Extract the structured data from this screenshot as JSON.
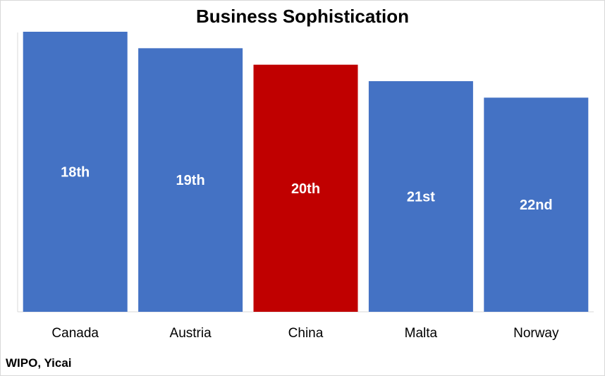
{
  "chart_data": {
    "type": "bar",
    "title": "Business Sophistication",
    "categories": [
      "Canada",
      "Austria",
      "China",
      "Malta",
      "Norway"
    ],
    "values": [
      22,
      21,
      20,
      19,
      18
    ],
    "data_labels": [
      "18th",
      "19th",
      "20th",
      "21st",
      "22nd"
    ],
    "ylim": [
      5,
      22
    ],
    "grid": false,
    "legend": "none",
    "axes_ticks_shown": false,
    "colors": {
      "default": "#4472C4",
      "highlight": "#C00000",
      "highlight_category": "China"
    }
  },
  "source": "WIPO, Yicai"
}
